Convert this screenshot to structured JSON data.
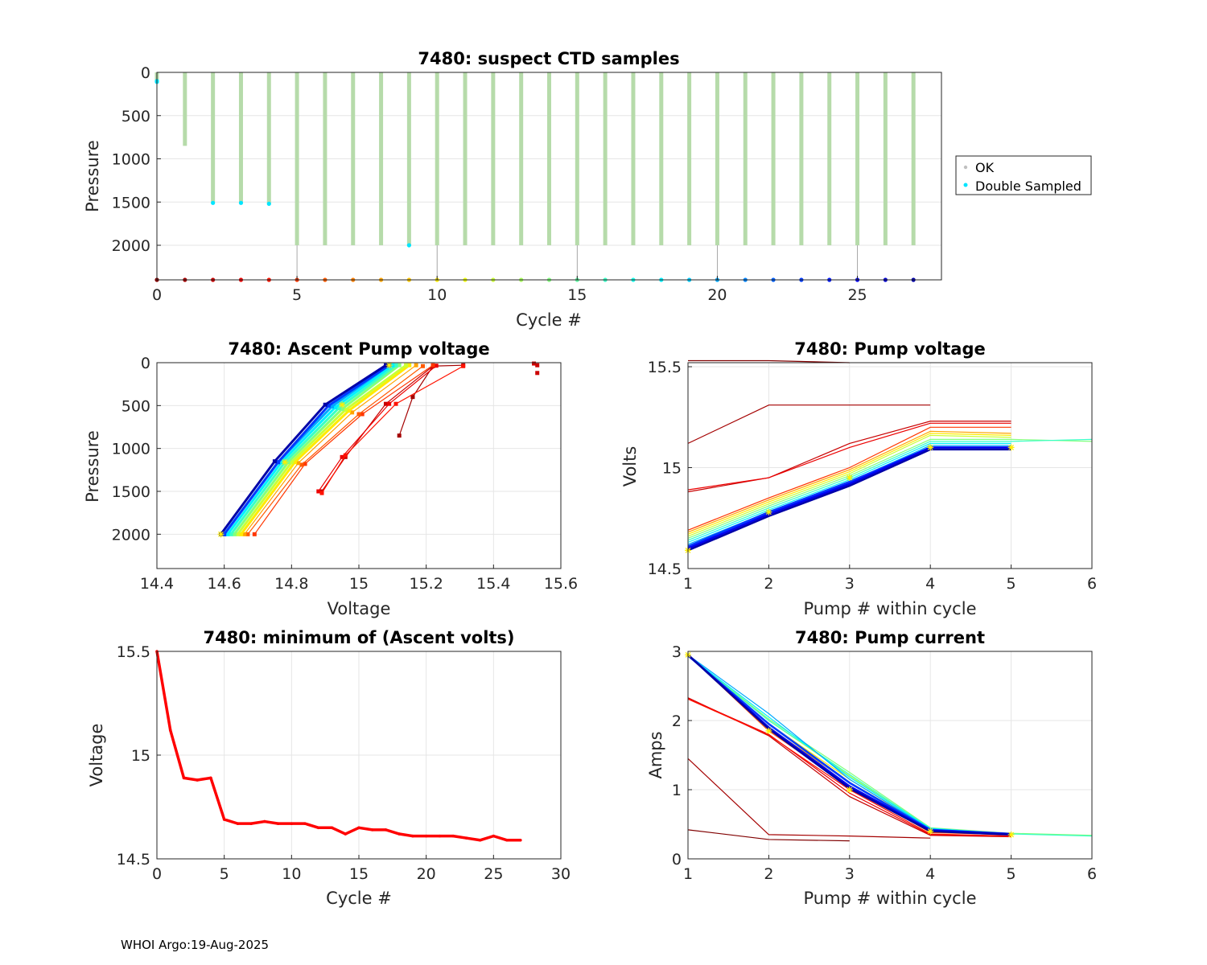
{
  "footer_text": "WHOI Argo:19-Aug-2025",
  "chart_data": [
    {
      "id": "suspect",
      "type": "scatter",
      "title": "7480: suspect CTD samples",
      "xlabel": "Cycle #",
      "ylabel": "Pressure",
      "xlim": [
        0,
        28
      ],
      "ylim": [
        0,
        2400
      ],
      "y_reversed": true,
      "xticks": [
        0,
        5,
        10,
        15,
        20,
        25
      ],
      "yticks": [
        0,
        500,
        1000,
        1500,
        2000
      ],
      "legend": [
        "OK",
        "Double Sampled"
      ],
      "legend_position": "outside-right",
      "colors": {
        "ok": "#b6dbaa",
        "double": "#00e5ff"
      },
      "profiles": [
        {
          "cycle": 0,
          "max_p": 90
        },
        {
          "cycle": 1,
          "max_p": 850
        },
        {
          "cycle": 2,
          "max_p": 1500
        },
        {
          "cycle": 3,
          "max_p": 1500
        },
        {
          "cycle": 4,
          "max_p": 1520
        },
        {
          "cycle": 5,
          "max_p": 2000
        },
        {
          "cycle": 6,
          "max_p": 2000
        },
        {
          "cycle": 7,
          "max_p": 2000
        },
        {
          "cycle": 8,
          "max_p": 2000
        },
        {
          "cycle": 9,
          "max_p": 2000
        },
        {
          "cycle": 10,
          "max_p": 2000
        },
        {
          "cycle": 11,
          "max_p": 2000
        },
        {
          "cycle": 12,
          "max_p": 2000
        },
        {
          "cycle": 13,
          "max_p": 2000
        },
        {
          "cycle": 14,
          "max_p": 2000
        },
        {
          "cycle": 15,
          "max_p": 2000
        },
        {
          "cycle": 16,
          "max_p": 2000
        },
        {
          "cycle": 17,
          "max_p": 2000
        },
        {
          "cycle": 18,
          "max_p": 2000
        },
        {
          "cycle": 19,
          "max_p": 2000
        },
        {
          "cycle": 20,
          "max_p": 2000
        },
        {
          "cycle": 21,
          "max_p": 2000
        },
        {
          "cycle": 22,
          "max_p": 2000
        },
        {
          "cycle": 23,
          "max_p": 2000
        },
        {
          "cycle": 24,
          "max_p": 2000
        },
        {
          "cycle": 25,
          "max_p": 2000
        },
        {
          "cycle": 26,
          "max_p": 2000
        },
        {
          "cycle": 27,
          "max_p": 2000
        }
      ],
      "double_sampled": [
        {
          "cycle": 0,
          "p": 100
        },
        {
          "cycle": 0,
          "p": 110
        },
        {
          "cycle": 2,
          "p": 1510
        },
        {
          "cycle": 3,
          "p": 1510
        },
        {
          "cycle": 4,
          "p": 1520
        },
        {
          "cycle": 9,
          "p": 2000
        }
      ],
      "thin_lines_cycles": [
        5,
        10,
        15,
        20,
        25
      ],
      "bottom_marker_p": 2400
    },
    {
      "id": "ascent",
      "type": "line",
      "title": "7480: Ascent Pump voltage",
      "xlabel": "Voltage",
      "ylabel": "Pressure",
      "xlim": [
        14.4,
        15.6
      ],
      "ylim": [
        0,
        2400
      ],
      "y_reversed": true,
      "xticks": [
        14.4,
        14.6,
        14.8,
        15,
        15.2,
        15.4,
        15.6
      ],
      "yticks": [
        0,
        500,
        1000,
        1500,
        2000
      ],
      "series": [
        {
          "cycle": 1,
          "points": [
            [
              15.12,
              850
            ],
            [
              15.16,
              400
            ],
            [
              15.22,
              40
            ],
            [
              15.31,
              30
            ]
          ]
        },
        {
          "cycle": 2,
          "points": [
            [
              14.89,
              1500
            ],
            [
              14.96,
              1100
            ],
            [
              15.08,
              480
            ],
            [
              15.22,
              40
            ]
          ]
        },
        {
          "cycle": 3,
          "points": [
            [
              14.88,
              1500
            ],
            [
              14.95,
              1100
            ],
            [
              15.09,
              480
            ],
            [
              15.23,
              35
            ]
          ]
        },
        {
          "cycle": 4,
          "points": [
            [
              14.89,
              1520
            ],
            [
              14.96,
              1080
            ],
            [
              15.11,
              480
            ],
            [
              15.31,
              40
            ]
          ]
        },
        {
          "cycle": 5,
          "points": [
            [
              14.69,
              2000
            ],
            [
              14.84,
              1180
            ],
            [
              15.01,
              600
            ],
            [
              15.22,
              30
            ]
          ]
        },
        {
          "cycle": 6,
          "points": [
            [
              14.67,
              2000
            ],
            [
              14.83,
              1190
            ],
            [
              15.0,
              600
            ],
            [
              15.19,
              40
            ]
          ]
        },
        {
          "cycle": 8,
          "points": [
            [
              14.66,
              2000
            ],
            [
              14.82,
              1170
            ],
            [
              14.98,
              580
            ],
            [
              15.17,
              30
            ]
          ]
        },
        {
          "cycle": 10,
          "points": [
            [
              14.65,
              2000
            ],
            [
              14.81,
              1160
            ],
            [
              14.97,
              560
            ],
            [
              15.15,
              30
            ]
          ]
        },
        {
          "cycle": 12,
          "points": [
            [
              14.64,
              2000
            ],
            [
              14.8,
              1160
            ],
            [
              14.96,
              550
            ],
            [
              15.14,
              30
            ]
          ]
        },
        {
          "cycle": 14,
          "points": [
            [
              14.63,
              2000
            ],
            [
              14.79,
              1160
            ],
            [
              14.95,
              540
            ],
            [
              15.12,
              30
            ]
          ]
        },
        {
          "cycle": 16,
          "points": [
            [
              14.62,
              2000
            ],
            [
              14.78,
              1160
            ],
            [
              14.94,
              530
            ],
            [
              15.11,
              30
            ]
          ]
        },
        {
          "cycle": 18,
          "points": [
            [
              14.61,
              2000
            ],
            [
              14.77,
              1160
            ],
            [
              14.93,
              520
            ],
            [
              15.1,
              30
            ]
          ]
        },
        {
          "cycle": 20,
          "points": [
            [
              14.6,
              2000
            ],
            [
              14.76,
              1160
            ],
            [
              14.92,
              510
            ],
            [
              15.09,
              30
            ]
          ]
        },
        {
          "cycle": 23,
          "points": [
            [
              14.6,
              2000
            ],
            [
              14.76,
              1160
            ],
            [
              14.91,
              500
            ],
            [
              15.09,
              30
            ]
          ]
        },
        {
          "cycle": 27,
          "points": [
            [
              14.59,
              2000
            ],
            [
              14.75,
              1150
            ],
            [
              14.9,
              490
            ],
            [
              15.08,
              30
            ]
          ]
        }
      ],
      "outliers": [
        [
          15.52,
          10
        ],
        [
          15.53,
          30
        ],
        [
          15.53,
          120
        ]
      ],
      "highlight": [
        [
          14.59,
          2000
        ],
        [
          14.78,
          1160
        ],
        [
          14.95,
          490
        ],
        [
          15.09,
          30
        ]
      ]
    },
    {
      "id": "pumpv",
      "type": "line",
      "title": "7480: Pump voltage",
      "xlabel": "Pump # within cycle",
      "ylabel": "Volts",
      "xlim": [
        1,
        6
      ],
      "ylim": [
        14.5,
        15.52
      ],
      "xticks": [
        1,
        2,
        3,
        4,
        5,
        6
      ],
      "yticks": [
        14.5,
        15,
        15.5
      ],
      "series": [
        {
          "cycle": 0,
          "values": [
            15.53,
            15.53,
            15.52
          ]
        },
        {
          "cycle": 1,
          "values": [
            15.12,
            15.31,
            15.31,
            15.31
          ]
        },
        {
          "cycle": 2,
          "values": [
            14.88,
            14.95,
            15.12,
            15.23,
            15.23
          ]
        },
        {
          "cycle": 3,
          "values": [
            14.89,
            14.95,
            15.1,
            15.22,
            15.22
          ]
        },
        {
          "cycle": 5,
          "values": [
            14.69,
            14.85,
            15.0,
            15.2,
            15.2
          ]
        },
        {
          "cycle": 8,
          "values": [
            14.68,
            14.84,
            14.99,
            15.18,
            15.17
          ]
        },
        {
          "cycle": 10,
          "values": [
            14.67,
            14.83,
            14.98,
            15.17,
            15.16
          ]
        },
        {
          "cycle": 12,
          "values": [
            14.66,
            14.82,
            14.97,
            15.16,
            15.15
          ]
        },
        {
          "cycle": 14,
          "values": [
            14.65,
            14.81,
            14.96,
            15.14,
            15.14,
            15.13
          ]
        },
        {
          "cycle": 16,
          "values": [
            14.64,
            14.8,
            14.95,
            15.13,
            15.13,
            15.14
          ]
        },
        {
          "cycle": 18,
          "values": [
            14.63,
            14.79,
            14.94,
            15.12,
            15.12
          ]
        },
        {
          "cycle": 20,
          "values": [
            14.62,
            14.78,
            14.93,
            15.11,
            15.11
          ]
        },
        {
          "cycle": 23,
          "values": [
            14.61,
            14.78,
            14.93,
            15.1,
            15.1
          ]
        },
        {
          "cycle": 25,
          "values": [
            14.6,
            14.77,
            14.92,
            15.1,
            15.1
          ]
        },
        {
          "cycle": 27,
          "values": [
            14.59,
            14.76,
            14.91,
            15.09,
            15.09
          ]
        }
      ],
      "highlight": [
        14.59,
        14.78,
        14.95,
        15.1,
        15.1
      ]
    },
    {
      "id": "minv",
      "type": "line",
      "title": "7480: minimum of (Ascent volts)",
      "xlabel": "Cycle #",
      "ylabel": "Voltage",
      "xlim": [
        0,
        30
      ],
      "ylim": [
        14.5,
        15.5
      ],
      "xticks": [
        0,
        5,
        10,
        15,
        20,
        25,
        30
      ],
      "yticks": [
        14.5,
        15,
        15.5
      ],
      "x": [
        0,
        1,
        2,
        3,
        4,
        5,
        6,
        7,
        8,
        9,
        10,
        11,
        12,
        13,
        14,
        15,
        16,
        17,
        18,
        19,
        20,
        21,
        22,
        23,
        24,
        25,
        26,
        27
      ],
      "values": [
        15.5,
        15.12,
        14.89,
        14.88,
        14.89,
        14.69,
        14.67,
        14.67,
        14.68,
        14.67,
        14.67,
        14.67,
        14.65,
        14.65,
        14.62,
        14.65,
        14.64,
        14.64,
        14.62,
        14.61,
        14.61,
        14.61,
        14.61,
        14.6,
        14.59,
        14.61,
        14.59,
        14.59
      ],
      "color": "#ff0000"
    },
    {
      "id": "pumpc",
      "type": "line",
      "title": "7480: Pump current",
      "xlabel": "Pump # within cycle",
      "ylabel": "Amps",
      "xlim": [
        1,
        6
      ],
      "ylim": [
        0,
        3
      ],
      "xticks": [
        1,
        2,
        3,
        4,
        5,
        6
      ],
      "yticks": [
        0,
        1,
        2,
        3
      ],
      "series": [
        {
          "cycle": 0,
          "values": [
            0.42,
            0.28,
            0.26
          ]
        },
        {
          "cycle": 1,
          "values": [
            1.45,
            0.35,
            0.33,
            0.3
          ]
        },
        {
          "cycle": 2,
          "values": [
            2.33,
            1.78,
            0.9,
            0.34,
            0.32
          ]
        },
        {
          "cycle": 3,
          "values": [
            2.32,
            1.8,
            0.95,
            0.35,
            0.33
          ]
        },
        {
          "cycle": 4,
          "values": [
            2.31,
            1.79,
            1.0,
            0.36,
            0.33
          ]
        },
        {
          "cycle": 6,
          "values": [
            2.95,
            1.85,
            1.05,
            0.38,
            0.35
          ]
        },
        {
          "cycle": 8,
          "values": [
            2.95,
            1.9,
            1.1,
            0.4,
            0.35
          ]
        },
        {
          "cycle": 10,
          "values": [
            2.94,
            1.95,
            1.15,
            0.42,
            0.36
          ]
        },
        {
          "cycle": 12,
          "values": [
            2.95,
            2.0,
            1.2,
            0.43,
            0.36
          ]
        },
        {
          "cycle": 14,
          "values": [
            2.94,
            2.02,
            1.25,
            0.45,
            0.37,
            0.34
          ]
        },
        {
          "cycle": 16,
          "values": [
            2.93,
            2.0,
            1.22,
            0.44,
            0.36,
            0.33
          ]
        },
        {
          "cycle": 18,
          "values": [
            2.94,
            2.05,
            1.18,
            0.44,
            0.36
          ]
        },
        {
          "cycle": 20,
          "values": [
            2.95,
            2.1,
            1.15,
            0.43,
            0.36
          ]
        },
        {
          "cycle": 23,
          "values": [
            2.94,
            1.95,
            1.1,
            0.42,
            0.36
          ]
        },
        {
          "cycle": 25,
          "values": [
            2.95,
            1.9,
            1.05,
            0.41,
            0.36
          ]
        },
        {
          "cycle": 27,
          "values": [
            2.95,
            1.88,
            1.02,
            0.4,
            0.35
          ]
        }
      ],
      "highlight": [
        2.95,
        1.85,
        1.0,
        0.4,
        0.35
      ]
    }
  ]
}
